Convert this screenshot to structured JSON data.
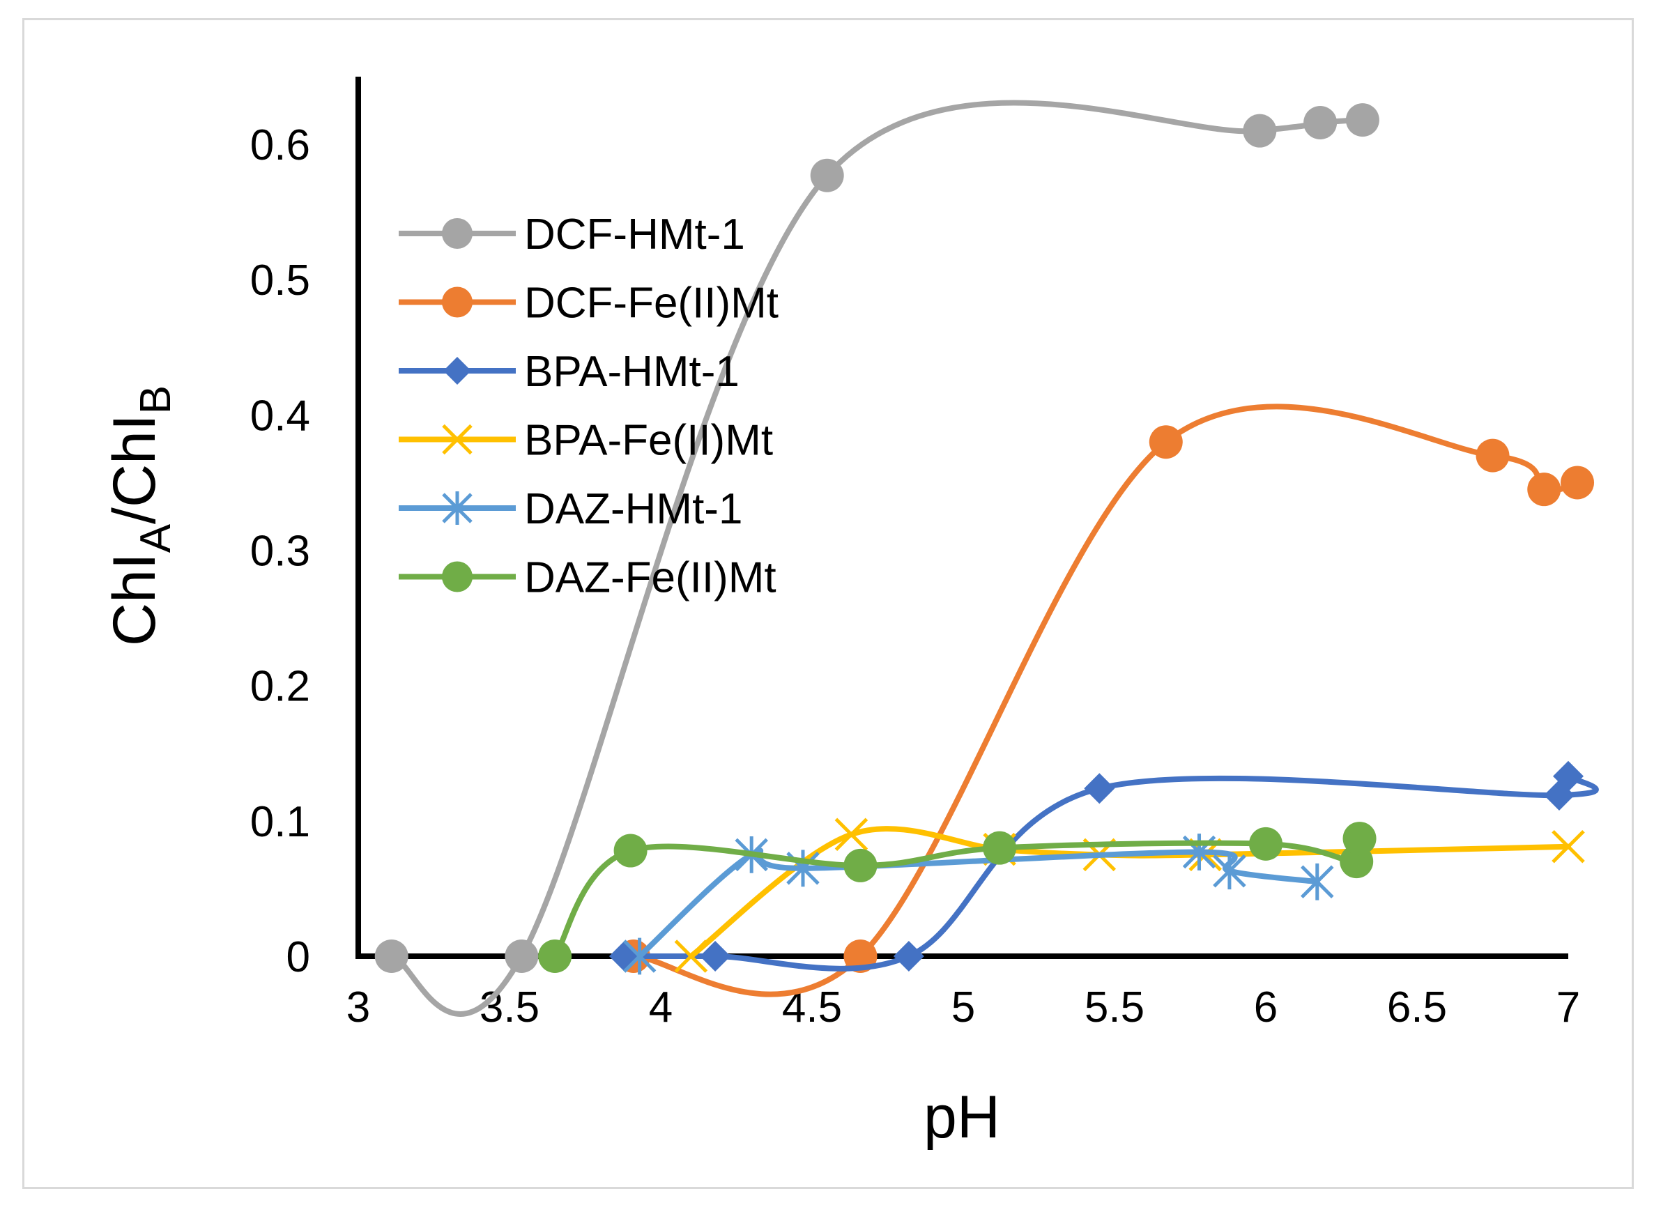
{
  "chart_data": {
    "type": "line",
    "title": "",
    "xlabel": "pH",
    "ylabel": {
      "base1": "ChI",
      "sub1": "A",
      "sep": "/ChI",
      "sub2": "B"
    },
    "xlim": [
      3,
      7
    ],
    "ylim": [
      0,
      0.65
    ],
    "x_ticks": [
      3,
      3.5,
      4,
      4.5,
      5,
      5.5,
      6,
      6.5,
      7
    ],
    "x_tick_labels": [
      "3",
      "3.5",
      "4",
      "4.5",
      "5",
      "5.5",
      "6",
      "6.5",
      "7"
    ],
    "y_ticks": [
      0,
      0.1,
      0.2,
      0.3,
      0.4,
      0.5,
      0.6
    ],
    "y_tick_labels": [
      "0",
      "0.1",
      "0.2",
      "0.3",
      "0.4",
      "0.5",
      "0.6"
    ],
    "legend_position": "upper-left",
    "series": [
      {
        "name": "DCF-HMt-1",
        "color": "#a5a5a5",
        "marker": "circle",
        "x": [
          3.11,
          3.54,
          4.55,
          5.98,
          6.18,
          6.32
        ],
        "y": [
          0,
          0,
          0.577,
          0.61,
          0.616,
          0.618
        ]
      },
      {
        "name": "DCF-Fe(II)Mt",
        "color": "#ed7d31",
        "marker": "circle",
        "x": [
          3.91,
          4.66,
          5.67,
          6.75,
          6.92,
          7.03
        ],
        "y": [
          0,
          0,
          0.38,
          0.37,
          0.345,
          0.35
        ]
      },
      {
        "name": "BPA-HMt-1",
        "color": "#4472c4",
        "marker": "diamond",
        "x": [
          3.88,
          4.18,
          4.82,
          5.45,
          6.97,
          7.0
        ],
        "y": [
          0,
          0,
          0,
          0.124,
          0.119,
          0.133
        ]
      },
      {
        "name": "BPA-Fe(II)Mt",
        "color": "#ffc000",
        "marker": "x",
        "x": [
          4.1,
          4.63,
          5.12,
          5.45,
          5.8,
          7.0
        ],
        "y": [
          0,
          0.09,
          0.079,
          0.075,
          0.075,
          0.081
        ]
      },
      {
        "name": "DAZ-HMt-1",
        "color": "#5b9bd5",
        "marker": "asterisk",
        "x": [
          3.93,
          4.3,
          4.47,
          5.78,
          5.88,
          6.17
        ],
        "y": [
          0,
          0.075,
          0.065,
          0.077,
          0.063,
          0.055
        ]
      },
      {
        "name": "DAZ-Fe(II)Mt",
        "color": "#70ad47",
        "marker": "circle",
        "x": [
          3.65,
          3.9,
          4.66,
          5.12,
          6.0,
          6.3,
          6.31
        ],
        "y": [
          0,
          0.078,
          0.067,
          0.08,
          0.083,
          0.07,
          0.087
        ]
      }
    ]
  }
}
